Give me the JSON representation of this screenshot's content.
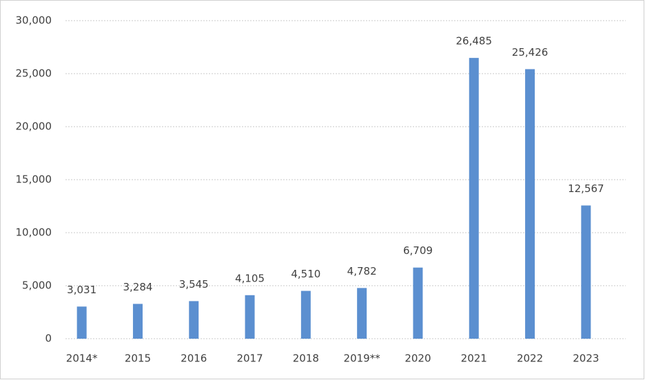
{
  "chart_data": {
    "type": "bar",
    "categories": [
      "2014*",
      "2015",
      "2016",
      "2017",
      "2018",
      "2019**",
      "2020",
      "2021",
      "2022",
      "2023"
    ],
    "values": [
      3031,
      3284,
      3545,
      4105,
      4510,
      4782,
      6709,
      26485,
      25426,
      12567
    ],
    "value_labels": [
      "3,031",
      "3,284",
      "3,545",
      "4,105",
      "4,510",
      "4,782",
      "6,709",
      "26,485",
      "25,426",
      "12,567"
    ],
    "color": "#5b8fd0",
    "ylim": [
      0,
      30000
    ],
    "yticks": [
      0,
      {
        "value": 5000,
        "label": "5,000"
      },
      {
        "value": 10000,
        "label": "10,000"
      },
      {
        "value": 15000,
        "label": "15,000"
      },
      {
        "value": 20000,
        "label": "20,000"
      },
      {
        "value": 25000,
        "label": "25,000"
      },
      {
        "value": 30000,
        "label": "30,000"
      }
    ],
    "grid": true
  }
}
